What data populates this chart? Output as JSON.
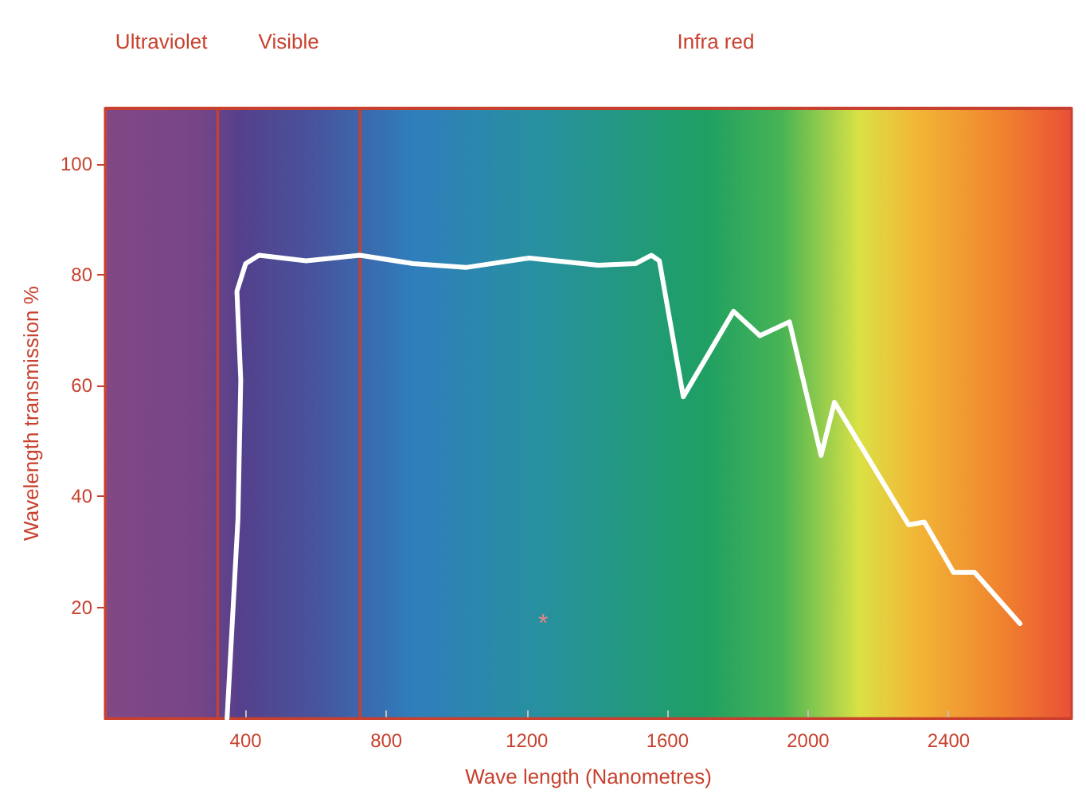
{
  "chart_data": {
    "type": "line",
    "xlabel": "Wave length (Nanometres)",
    "ylabel": "Wavelength transmission %",
    "xlim": [
      0,
      2750
    ],
    "xticks": [
      400,
      800,
      1200,
      1600,
      2000,
      2400
    ],
    "ylim": [
      0,
      110
    ],
    "yticks": [
      20,
      40,
      60,
      80,
      100
    ],
    "grid": false,
    "marker": "none",
    "line_style": "solid",
    "series": [
      {
        "color": "#ffffff",
        "x": [
          347,
          378,
          386,
          375,
          400,
          438,
          572,
          725,
          876,
          1026,
          1206,
          1403,
          1509,
          1554,
          1577,
          1645,
          1788,
          1863,
          1947,
          2037,
          2075,
          2203,
          2286,
          2331,
          2414,
          2474,
          2603
        ],
        "values": [
          0,
          36,
          61,
          77,
          82,
          83.5,
          82.5,
          83.5,
          82,
          81.3,
          83,
          81.7,
          82,
          83.5,
          82.5,
          58,
          73.4,
          69,
          71.5,
          47.4,
          57,
          43.6,
          34.9,
          35.4,
          26.3,
          26.3,
          17.1
        ]
      }
    ],
    "bands": [
      {
        "axis": "x",
        "from": 0,
        "to": 320,
        "label": "Ultraviolet",
        "color": "#c8412f"
      },
      {
        "axis": "x",
        "from": 320,
        "to": 725,
        "label": "Visible",
        "color": "#c8412f"
      },
      {
        "axis": "x",
        "from": 725,
        "to": 2750,
        "label": "Infra red",
        "color": "#c8412f"
      }
    ],
    "annotations": [
      "*"
    ]
  }
}
